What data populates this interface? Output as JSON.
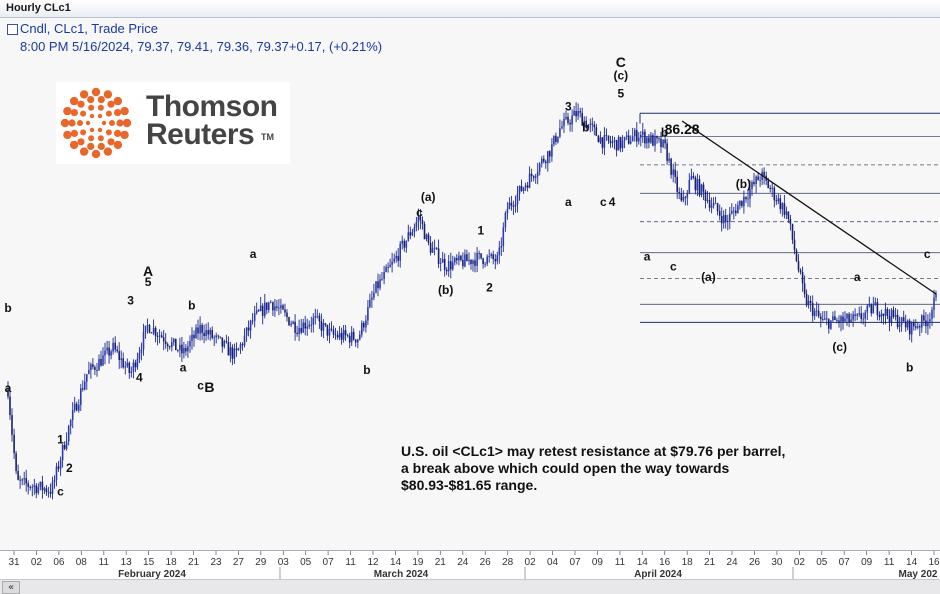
{
  "window": {
    "title": "Hourly CLc1"
  },
  "legend": {
    "line1": "Cndl, CLc1, Trade Price",
    "line2": "8:00 PM 5/16/2024, 79.37, 79.41, 79.36, 79.37+0.17, (+0.21%)"
  },
  "logo": {
    "line1": "Thomson",
    "line2": "Reuters",
    "tm": "TM"
  },
  "annotation": {
    "line1": "U.S. oil <CLc1> may retest resistance at $79.76 per barrel,",
    "line2": "a break above which could open the way towards",
    "line3": "$80.93-$81.65 range."
  },
  "scroll": {
    "left_glyph": "«"
  },
  "chart_data": {
    "type": "candlestick",
    "title": "Hourly CLc1",
    "series_label": "Cndl, CLc1, Trade Price",
    "last_bar": {
      "datetime": "5/16/2024 8:00 PM",
      "open": 79.37,
      "high": 79.41,
      "low": 79.36,
      "close": 79.37,
      "change": 0.17,
      "change_pct": 0.21
    },
    "price_labels": [
      "86.28"
    ],
    "x_tick_labels": [
      "31",
      "02",
      "06",
      "08",
      "11",
      "13",
      "15",
      "18",
      "21",
      "23",
      "27",
      "29",
      "03",
      "05",
      "07",
      "11",
      "12",
      "14",
      "19",
      "21",
      "24",
      "26",
      "28",
      "02",
      "04",
      "07",
      "09",
      "11",
      "14",
      "16",
      "18",
      "21",
      "24",
      "26",
      "30",
      "02",
      "05",
      "07",
      "09",
      "11",
      "14",
      "16"
    ],
    "month_labels": [
      "February 2024",
      "March 2024",
      "April 2024",
      "May 202"
    ],
    "approx_price_path": {
      "dates": [
        "2024-01-31",
        "2024-02-01",
        "2024-02-05",
        "2024-02-07",
        "2024-02-09",
        "2024-02-12",
        "2024-02-14",
        "2024-02-16",
        "2024-02-20",
        "2024-02-22",
        "2024-02-26",
        "2024-02-28",
        "2024-03-01",
        "2024-03-04",
        "2024-03-06",
        "2024-03-08",
        "2024-03-11",
        "2024-03-13",
        "2024-03-15",
        "2024-03-18",
        "2024-03-19",
        "2024-03-21",
        "2024-03-25",
        "2024-03-27",
        "2024-03-28",
        "2024-04-02",
        "2024-04-03",
        "2024-04-05",
        "2024-04-08",
        "2024-04-10",
        "2024-04-12",
        "2024-04-15",
        "2024-04-17",
        "2024-04-18",
        "2024-04-22",
        "2024-04-24",
        "2024-04-26",
        "2024-04-29",
        "2024-05-01",
        "2024-05-03",
        "2024-05-07",
        "2024-05-09",
        "2024-05-13",
        "2024-05-15",
        "2024-05-16"
      ],
      "close": [
        75.9,
        72.3,
        72.0,
        74.5,
        76.5,
        77.5,
        76.5,
        78.4,
        77.3,
        78.3,
        77.2,
        78.6,
        79.3,
        78.3,
        78.6,
        78.0,
        77.9,
        79.8,
        80.8,
        82.6,
        81.5,
        80.7,
        81.0,
        80.9,
        82.9,
        85.2,
        86.0,
        86.6,
        85.5,
        85.4,
        85.8,
        85.3,
        83.0,
        84.1,
        82.4,
        83.3,
        84.2,
        82.7,
        79.4,
        78.5,
        78.6,
        79.1,
        78.3,
        78.6,
        79.4
      ]
    },
    "wave_labels": [
      "b",
      "a",
      "c",
      "1",
      "2",
      "3",
      "4",
      "5",
      "A",
      "b",
      "a",
      "c",
      "B",
      "a",
      "b",
      "(a)",
      "c",
      "1",
      "(b)",
      "2",
      "3",
      "a",
      "b",
      "c",
      "4",
      "C",
      "(c)",
      "5",
      "b",
      "86.28",
      "a",
      "c",
      "(a)",
      "(b)",
      "a",
      "(c)",
      "b",
      "c"
    ],
    "fib_levels": "unlabeled",
    "trendline": "descending from 86.28"
  }
}
